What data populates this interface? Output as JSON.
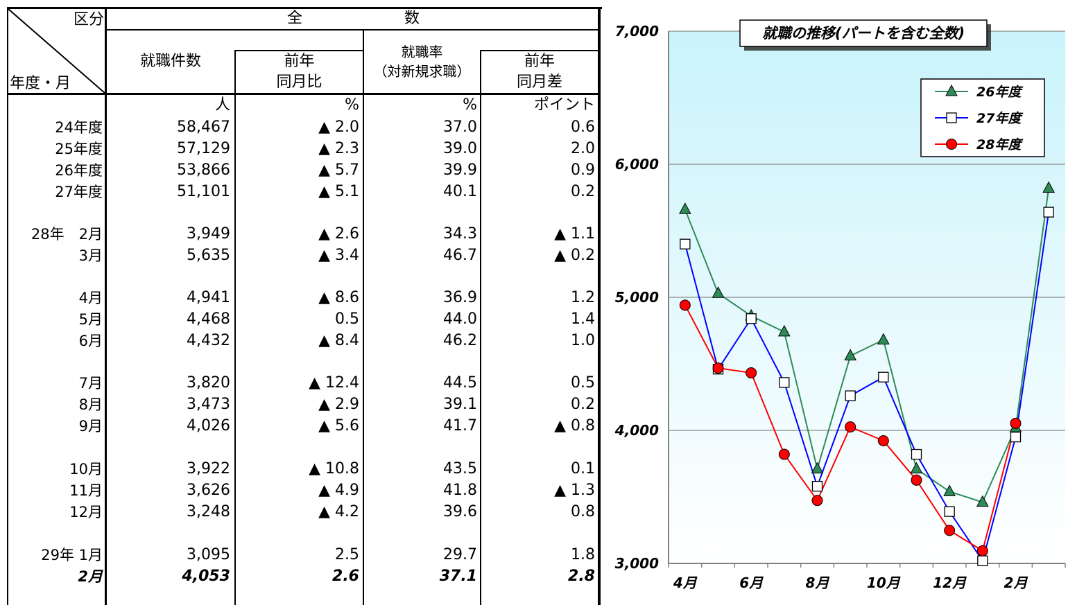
{
  "table": {
    "corner_top": "区分",
    "corner_bottom": "年度・月",
    "group_header_left": "全",
    "group_header_right": "数",
    "col_headers": {
      "placements": "就職件数",
      "placements_yoy_line1": "前年",
      "placements_yoy_line2": "同月比",
      "rate_line1": "就職率",
      "rate_line2": "（対新規求職）",
      "rate_diff_line1": "前年",
      "rate_diff_line2": "同月差"
    },
    "units": {
      "placements": "人",
      "placements_yoy": "%",
      "rate": "%",
      "rate_diff": "ポイント"
    },
    "rows": [
      {
        "label": "24年度",
        "count": "58,467",
        "yoy": "▲ 2.0",
        "rate": "37.0",
        "diff": "0.6"
      },
      {
        "label": "25年度",
        "count": "57,129",
        "yoy": "▲ 2.3",
        "rate": "39.0",
        "diff": "2.0"
      },
      {
        "label": "26年度",
        "count": "53,866",
        "yoy": "▲ 5.7",
        "rate": "39.9",
        "diff": "0.9"
      },
      {
        "label": "27年度",
        "count": "51,101",
        "yoy": "▲ 5.1",
        "rate": "40.1",
        "diff": "0.2"
      },
      {
        "label": "28年　2月",
        "count": "3,949",
        "yoy": "▲ 2.6",
        "rate": "34.3",
        "diff": "▲ 1.1"
      },
      {
        "label": "3月",
        "count": "5,635",
        "yoy": "▲ 3.4",
        "rate": "46.7",
        "diff": "▲ 0.2"
      },
      {
        "label": "4月",
        "count": "4,941",
        "yoy": "▲ 8.6",
        "rate": "36.9",
        "diff": "1.2"
      },
      {
        "label": "5月",
        "count": "4,468",
        "yoy": "0.5",
        "rate": "44.0",
        "diff": "1.4"
      },
      {
        "label": "6月",
        "count": "4,432",
        "yoy": "▲ 8.4",
        "rate": "46.2",
        "diff": "1.0"
      },
      {
        "label": "7月",
        "count": "3,820",
        "yoy": "▲ 12.4",
        "rate": "44.5",
        "diff": "0.5"
      },
      {
        "label": "8月",
        "count": "3,473",
        "yoy": "▲ 2.9",
        "rate": "39.1",
        "diff": "0.2"
      },
      {
        "label": "9月",
        "count": "4,026",
        "yoy": "▲ 5.6",
        "rate": "41.7",
        "diff": "▲ 0.8"
      },
      {
        "label": "10月",
        "count": "3,922",
        "yoy": "▲ 10.8",
        "rate": "43.5",
        "diff": "0.1"
      },
      {
        "label": "11月",
        "count": "3,626",
        "yoy": "▲ 4.9",
        "rate": "41.8",
        "diff": "▲ 1.3"
      },
      {
        "label": "12月",
        "count": "3,248",
        "yoy": "▲ 4.2",
        "rate": "39.6",
        "diff": "0.8"
      },
      {
        "label": "29年 1月",
        "count": "3,095",
        "yoy": "2.5",
        "rate": "29.7",
        "diff": "1.8"
      },
      {
        "label": "2月",
        "count": "4,053",
        "yoy": "2.6",
        "rate": "37.1",
        "diff": "2.8",
        "emphasis": true
      }
    ]
  },
  "chart_data": {
    "type": "line",
    "title": "就職の推移(パートを含む全数)",
    "x": [
      "4月",
      "5月",
      "6月",
      "7月",
      "8月",
      "9月",
      "10月",
      "11月",
      "12月",
      "1月",
      "2月",
      "3月"
    ],
    "x_tick_labels": [
      "4月",
      "",
      "6月",
      "",
      "8月",
      "",
      "10月",
      "",
      "12月",
      "",
      "2月",
      ""
    ],
    "y_tick_labels": [
      "3,000",
      "4,000",
      "5,000",
      "6,000",
      "7,000"
    ],
    "ylim": [
      3000,
      7000
    ],
    "yticks": [
      3000,
      4000,
      5000,
      6000,
      7000
    ],
    "grid": true,
    "legend_position": "top-right",
    "series": [
      {
        "name": "26年度",
        "color": "#2e8b57",
        "marker": "triangle",
        "values": [
          5660,
          5030,
          4860,
          4740,
          3710,
          4560,
          4680,
          3710,
          3540,
          3460,
          4020,
          5820
        ]
      },
      {
        "name": "27年度",
        "color": "#0000ff",
        "marker": "square",
        "values": [
          5400,
          4460,
          4840,
          4360,
          3580,
          4260,
          4400,
          3820,
          3390,
          3020,
          3950,
          5640
        ]
      },
      {
        "name": "28年度",
        "color": "#ff0000",
        "marker": "circle",
        "values": [
          4941,
          4468,
          4432,
          3820,
          3473,
          4026,
          3922,
          3626,
          3248,
          3095,
          4053,
          null
        ]
      }
    ]
  }
}
